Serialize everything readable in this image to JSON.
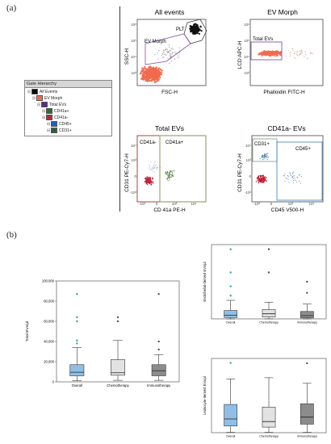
{
  "panel_a_label": "(a)",
  "panel_b_label": "(b)",
  "gate_hierarchy": {
    "title": "Gate Hierarchy",
    "items": [
      {
        "label": "All Events",
        "color": "#000000",
        "level": 0
      },
      {
        "label": "EV Morph",
        "color": "#f06a4d",
        "level": 1
      },
      {
        "label": "Total EVs",
        "color": "#5a2d86",
        "level": 2
      },
      {
        "label": "CD41a+",
        "color": "#2e6b2e",
        "level": 3
      },
      {
        "label": "CD41a-",
        "color": "#c0233a",
        "level": 3
      },
      {
        "label": "CD45+",
        "color": "#1f5fbf",
        "level": 4
      },
      {
        "label": "CD31+",
        "color": "#2f5f3a",
        "level": 4
      }
    ]
  },
  "flow_plots": {
    "all_events": {
      "title": "All events",
      "ylabel": "SSC-H",
      "xlabel": "FSC-H",
      "gate_labels": [
        "PLT",
        "EV Morph"
      ],
      "ticks": [
        "10⁶",
        "10⁵",
        "10⁴",
        "10³"
      ]
    },
    "ev_morph": {
      "title": "EV Morph",
      "ylabel": "LCD APC-H",
      "xlabel": "Phalloidin FITC-H",
      "gate_labels": [
        "Total EVs"
      ],
      "ticks": [
        "10⁶",
        "10⁵",
        "10⁴",
        "10³"
      ]
    },
    "total_evs": {
      "title": "Total EVs",
      "ylabel": "CD31 PE-Cy7-H",
      "xlabel": "CD 41a PE-H",
      "gate_labels": [
        "CD41a-",
        "CD41a+"
      ],
      "ticks": [
        "10⁴",
        "10³",
        "0",
        "-10³"
      ],
      "xticks": [
        "-10³",
        "0",
        "10³",
        "10⁴"
      ]
    },
    "cd41a_neg": {
      "title": "CD41a- EVs",
      "ylabel": "CD31 PE-Cy7-H",
      "xlabel": "CD45 V500-H",
      "gate_labels": [
        "CD31+",
        "CD45+"
      ],
      "ticks": [
        "10⁴",
        "10³",
        "0",
        "-10³"
      ],
      "xticks": [
        "-10³",
        "0",
        "10³",
        "10⁴"
      ]
    }
  },
  "box_colors": {
    "blue": "#8fbfe6",
    "light": "#e2e2e2",
    "dark": "#8c8c8c"
  },
  "chart_data": [
    {
      "type": "box",
      "title": "",
      "ylabel": "Total EVs/µl",
      "ylim": [
        0,
        100000
      ],
      "yticks": [
        "0",
        "20,000",
        "40,000",
        "60,000",
        "80,000",
        "100,000"
      ],
      "categories": [
        "Overall",
        "Chemotherapy",
        "Immunotherapy"
      ],
      "boxes": [
        {
          "q1": 6000,
          "median": 9500,
          "q3": 17000,
          "whisker_low": 1000,
          "whisker_high": 34000,
          "outliers": [
            38000,
            41000,
            60000,
            64000,
            87000
          ]
        },
        {
          "q1": 6500,
          "median": 9000,
          "q3": 22000,
          "whisker_low": 1500,
          "whisker_high": 41000,
          "outliers": [
            60000,
            64000
          ]
        },
        {
          "q1": 6000,
          "median": 11000,
          "q3": 17000,
          "whisker_low": 1500,
          "whisker_high": 27000,
          "outliers": [
            32000,
            40000,
            87000
          ]
        }
      ]
    },
    {
      "type": "box",
      "title": "",
      "ylabel": "Endothelial-derived EVs/µl",
      "ylim": [
        0,
        8000
      ],
      "categories": [
        "Overall",
        "Chemotherapy",
        "Immunotherapy"
      ],
      "boxes": [
        {
          "q1": 150,
          "median": 400,
          "q3": 900,
          "whisker_low": 0,
          "whisker_high": 2000,
          "outliers": [
            2500,
            3500,
            5000,
            7500
          ]
        },
        {
          "q1": 200,
          "median": 550,
          "q3": 1000,
          "whisker_low": 0,
          "whisker_high": 1800,
          "outliers": [
            5000,
            7500
          ]
        },
        {
          "q1": 100,
          "median": 350,
          "q3": 800,
          "whisker_low": 0,
          "whisker_high": 1600,
          "outliers": [
            2800,
            4000
          ]
        }
      ]
    },
    {
      "type": "box",
      "title": "",
      "ylabel": "Leukocyte-derived EVs/µl",
      "ylim": [
        0,
        2000
      ],
      "categories": [
        "Overall",
        "Chemotherapy",
        "Immunotherapy"
      ],
      "boxes": [
        {
          "q1": 180,
          "median": 370,
          "q3": 760,
          "whisker_low": 10,
          "whisker_high": 1450,
          "outliers": [
            1880
          ]
        },
        {
          "q1": 150,
          "median": 300,
          "q3": 690,
          "whisker_low": 10,
          "whisker_high": 1480,
          "outliers": []
        },
        {
          "q1": 230,
          "median": 420,
          "q3": 780,
          "whisker_low": 10,
          "whisker_high": 1330,
          "outliers": [
            1870
          ]
        }
      ]
    }
  ]
}
